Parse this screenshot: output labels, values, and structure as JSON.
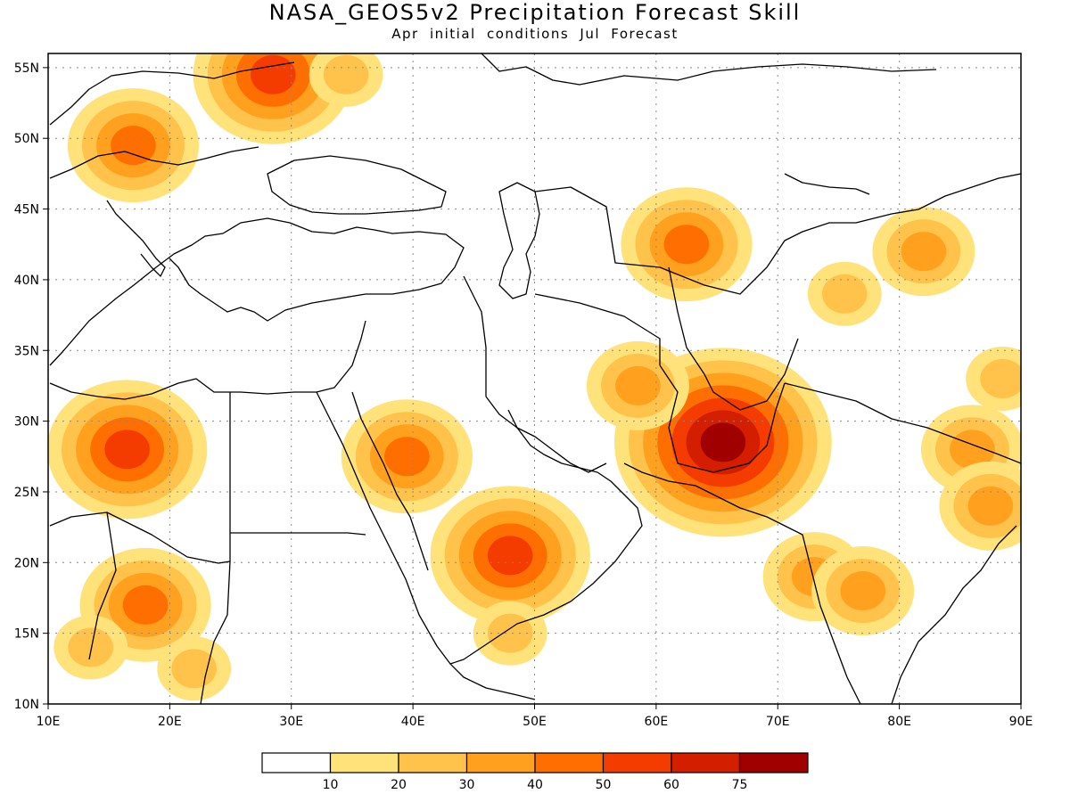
{
  "title": "NASA_GEOS5v2 Precipitation Forecast Skill",
  "subtitle": "Apr initial conditions   Jul Forecast",
  "map": {
    "lon_range": [
      10,
      90
    ],
    "lat_range": [
      10,
      56
    ],
    "grid": true,
    "lon_ticks": [
      "10E",
      "20E",
      "30E",
      "40E",
      "50E",
      "60E",
      "70E",
      "80E",
      "90E"
    ],
    "lat_ticks": [
      "10N",
      "15N",
      "20N",
      "25N",
      "30N",
      "35N",
      "40N",
      "45N",
      "50N",
      "55N"
    ]
  },
  "colorbar": {
    "labels": [
      "10",
      "20",
      "30",
      "40",
      "50",
      "60",
      "75"
    ],
    "colors": [
      "#ffffff",
      "#ffe27a",
      "#ffc24a",
      "#ffa01e",
      "#ff6e00",
      "#f53c00",
      "#d41e00",
      "#a00000"
    ]
  },
  "chart_data": {
    "type": "heatmap",
    "title": "NASA_GEOS5v2 Precipitation Forecast Skill",
    "subtitle": "Apr initial conditions   Jul Forecast",
    "x_axis": "longitude",
    "y_axis": "latitude",
    "xlim": [
      10,
      90
    ],
    "ylim": [
      10,
      56
    ],
    "levels": [
      10,
      20,
      30,
      40,
      50,
      60,
      75
    ],
    "hotspots": [
      {
        "lon": 65.5,
        "lat": 28.5,
        "value": 78
      },
      {
        "lon": 16.5,
        "lat": 28.0,
        "value": 55
      },
      {
        "lon": 28.5,
        "lat": 54.5,
        "value": 55
      },
      {
        "lon": 48.0,
        "lat": 20.5,
        "value": 50
      },
      {
        "lon": 18.0,
        "lat": 17.0,
        "value": 45
      },
      {
        "lon": 39.5,
        "lat": 27.5,
        "value": 40
      },
      {
        "lon": 62.5,
        "lat": 42.5,
        "value": 40
      },
      {
        "lon": 17.0,
        "lat": 49.5,
        "value": 40
      },
      {
        "lon": 73.0,
        "lat": 19.0,
        "value": 35
      },
      {
        "lon": 77.0,
        "lat": 18.0,
        "value": 30
      },
      {
        "lon": 86.0,
        "lat": 28.0,
        "value": 30
      },
      {
        "lon": 87.5,
        "lat": 24.0,
        "value": 30
      },
      {
        "lon": 82.0,
        "lat": 42.0,
        "value": 30
      },
      {
        "lon": 58.5,
        "lat": 32.5,
        "value": 30
      },
      {
        "lon": 13.5,
        "lat": 14.0,
        "value": 25
      },
      {
        "lon": 34.5,
        "lat": 54.5,
        "value": 25
      },
      {
        "lon": 22.0,
        "lat": 12.5,
        "value": 25
      },
      {
        "lon": 48.0,
        "lat": 15.0,
        "value": 25
      },
      {
        "lon": 75.5,
        "lat": 39.0,
        "value": 20
      },
      {
        "lon": 88.5,
        "lat": 33.0,
        "value": 20
      }
    ]
  }
}
